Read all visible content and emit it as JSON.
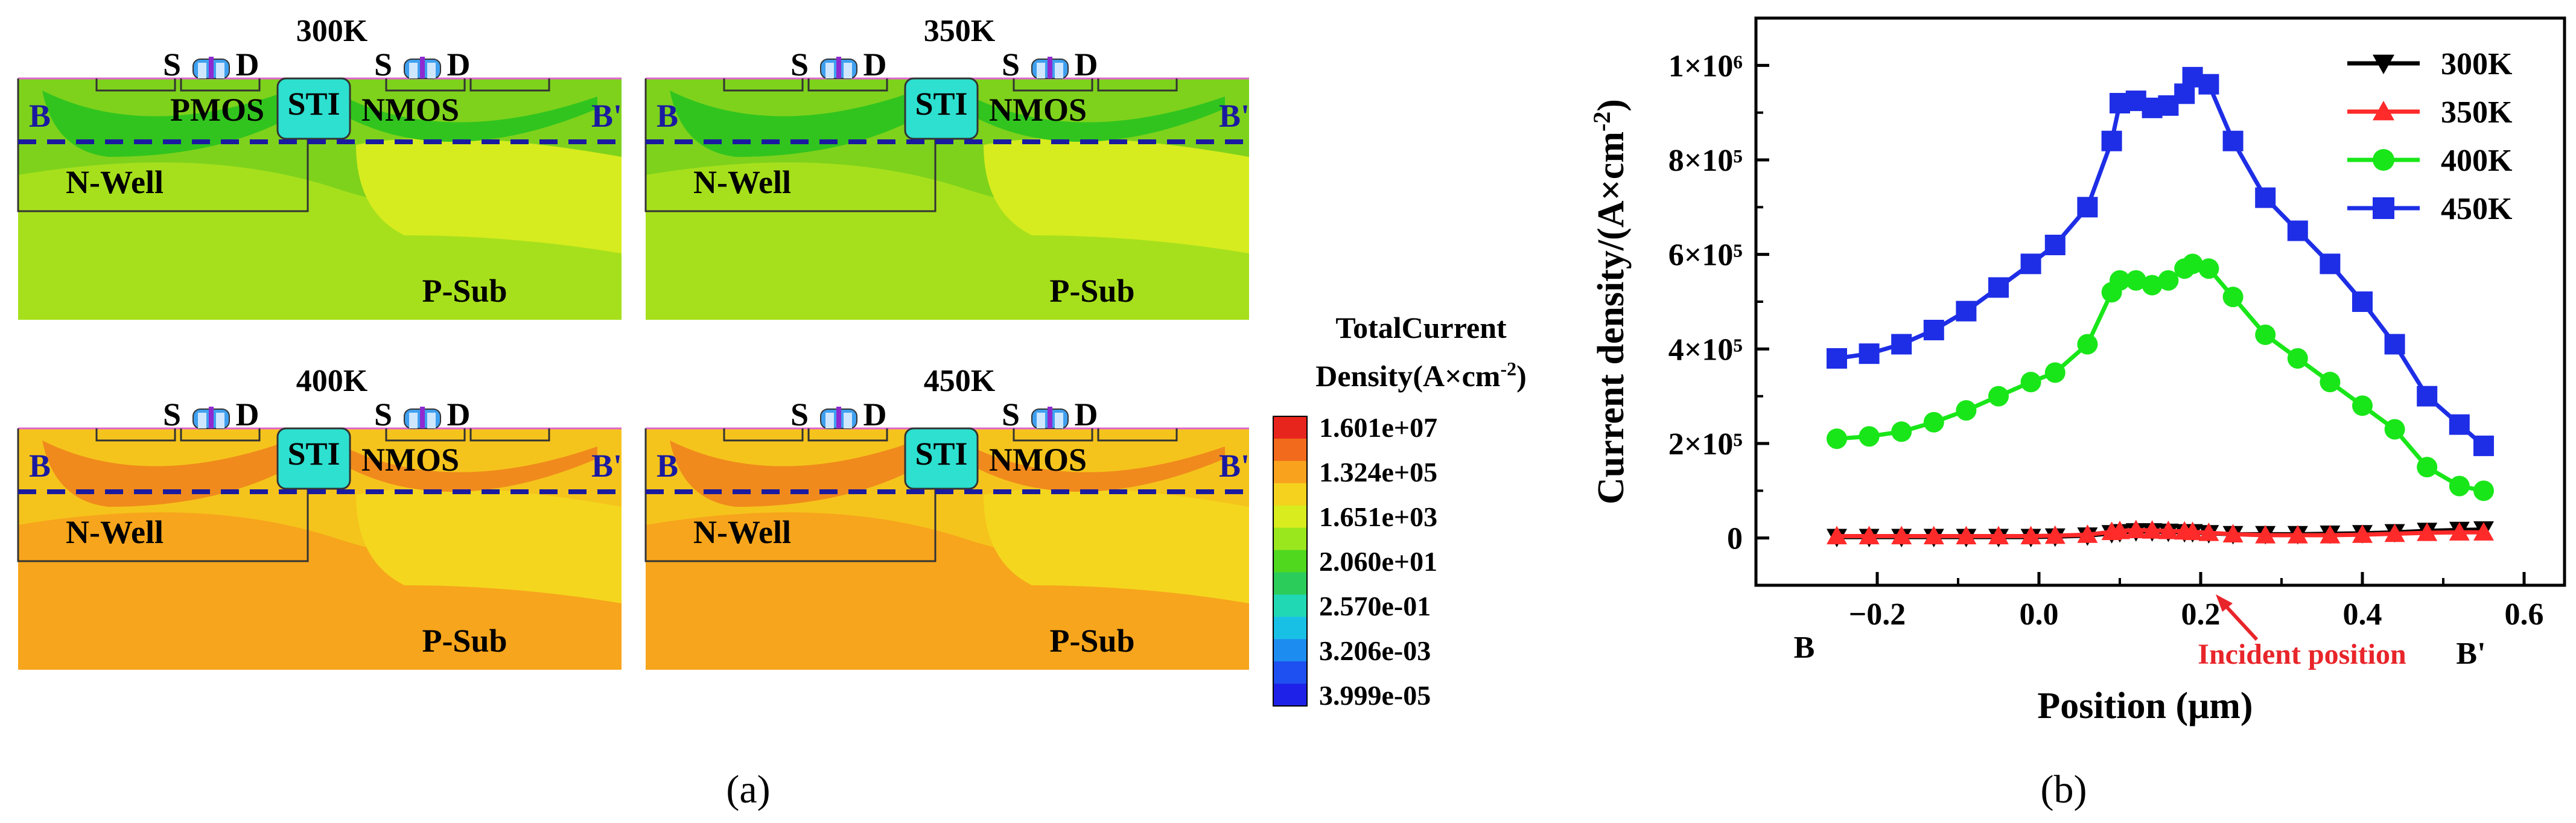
{
  "panel_a": {
    "label": "(a)",
    "sims": [
      {
        "title": "300K",
        "theme": "green",
        "labels": {
          "s1": "S",
          "d1": "D",
          "s2": "S",
          "d2": "D",
          "pmos": "PMOS",
          "sti": "STI",
          "nmos": "NMOS",
          "b": "B",
          "bp": "B'",
          "nwell": "N-Well",
          "psub": "P-Sub"
        }
      },
      {
        "title": "350K",
        "theme": "green",
        "labels": {
          "s1": "S",
          "d1": "D",
          "s2": "S",
          "d2": "D",
          "pmos": "",
          "sti": "STI",
          "nmos": "NMOS",
          "b": "B",
          "bp": "B'",
          "nwell": "N-Well",
          "psub": "P-Sub"
        }
      },
      {
        "title": "400K",
        "theme": "orange",
        "labels": {
          "s1": "S",
          "d1": "D",
          "s2": "S",
          "d2": "D",
          "pmos": "",
          "sti": "STI",
          "nmos": "NMOS",
          "b": "B",
          "bp": "B'",
          "nwell": "N-Well",
          "psub": "P-Sub"
        }
      },
      {
        "title": "450K",
        "theme": "orange",
        "labels": {
          "s1": "S",
          "d1": "D",
          "s2": "S",
          "d2": "D",
          "pmos": "",
          "sti": "STI",
          "nmos": "NMOS",
          "b": "B",
          "bp": "B'",
          "nwell": "N-Well",
          "psub": "P-Sub"
        }
      }
    ],
    "colorbar": {
      "title_line1": "TotalCurrent",
      "title_line2": "Density(A×cm",
      "title_sup": "-2",
      "title_close": ")",
      "ticks": [
        "1.601e+07",
        "1.324e+05",
        "1.651e+03",
        "2.060e+01",
        "2.570e-01",
        "3.206e-03",
        "3.999e-05"
      ],
      "colors": [
        "#e8251c",
        "#f26a1b",
        "#f9a21e",
        "#f5d21e",
        "#d8ec1e",
        "#9be71e",
        "#4fd81e",
        "#2ccc5a",
        "#20d8b4",
        "#19c0e6",
        "#1c8cf0",
        "#1e4ff0",
        "#1e22e8"
      ]
    }
  },
  "panel_b": {
    "label": "(b)",
    "annotation": "Incident position",
    "b_label": "B",
    "bp_label": "B'",
    "yticks": [
      "0",
      "2×10⁵",
      "4×10⁵",
      "6×10⁵",
      "8×10⁵",
      "1×10⁶"
    ],
    "xticks": [
      "−0.2",
      "0.0",
      "0.2",
      "0.4",
      "0.6"
    ],
    "ylabel_main": "Current density/(A×cm",
    "ylabel_sup": "-2",
    "ylabel_close": ")",
    "xlabel": "Position (μm)"
  },
  "chart_data": {
    "type": "line",
    "xlabel": "Position (μm)",
    "ylabel": "Current density/(A×cm-2)",
    "xlim": [
      -0.35,
      0.65
    ],
    "ylim": [
      -100000,
      1100000
    ],
    "x": [
      -0.25,
      -0.21,
      -0.17,
      -0.13,
      -0.09,
      -0.05,
      -0.01,
      0.02,
      0.06,
      0.09,
      0.1,
      0.12,
      0.14,
      0.16,
      0.18,
      0.19,
      0.21,
      0.24,
      0.28,
      0.32,
      0.36,
      0.4,
      0.44,
      0.48,
      0.52,
      0.55
    ],
    "series": [
      {
        "name": "300K",
        "color": "#000000",
        "marker": "triangle-down",
        "values": [
          2000,
          2000,
          2000,
          2000,
          2000,
          2000,
          2000,
          3000,
          5000,
          10000,
          12000,
          14000,
          14000,
          13000,
          12000,
          12000,
          10000,
          8000,
          8000,
          8000,
          9000,
          10000,
          12000,
          15000,
          17000,
          18000
        ]
      },
      {
        "name": "350K",
        "color": "#ff2a2a",
        "marker": "triangle-up",
        "values": [
          4000,
          4000,
          4000,
          4000,
          4000,
          4000,
          4000,
          5000,
          7000,
          13000,
          15000,
          17000,
          16000,
          15000,
          14000,
          13000,
          11000,
          8000,
          6000,
          6000,
          6000,
          7000,
          9000,
          11000,
          12000,
          12000
        ]
      },
      {
        "name": "400K",
        "color": "#19e619",
        "marker": "circle",
        "values": [
          210000,
          215000,
          225000,
          245000,
          270000,
          300000,
          330000,
          350000,
          410000,
          520000,
          545000,
          545000,
          535000,
          545000,
          570000,
          580000,
          570000,
          510000,
          430000,
          380000,
          330000,
          280000,
          230000,
          150000,
          110000,
          100000
        ]
      },
      {
        "name": "450K",
        "color": "#1e2ee6",
        "marker": "square",
        "values": [
          380000,
          390000,
          410000,
          440000,
          480000,
          530000,
          580000,
          620000,
          700000,
          840000,
          920000,
          925000,
          910000,
          915000,
          940000,
          975000,
          960000,
          840000,
          720000,
          650000,
          580000,
          500000,
          410000,
          300000,
          240000,
          195000
        ]
      }
    ],
    "legend_position": "top-right"
  }
}
